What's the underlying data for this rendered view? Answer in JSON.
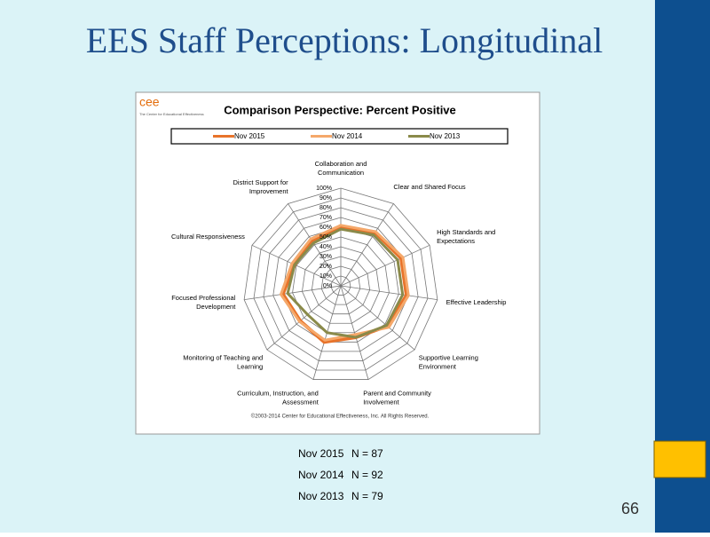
{
  "title": "EES Staff Perceptions: Longitudinal",
  "logo_text": "cee",
  "logo_caption": "The Center for Educational Effectiveness",
  "chart_data": {
    "type": "radar",
    "title": "Comparison Perspective: Percent Positive",
    "categories": [
      "Collaboration and\nCommunication",
      "Clear and Shared Focus",
      "High Standards and\nExpectations",
      "Effective Leadership",
      "Supportive Learning\nEnvironment",
      "Parent and Community\nInvolvement",
      "Curriculum, Instruction, and\nAssessment",
      "Monitoring of Teaching and\nLearning",
      "Focused Professional\nDevelopment",
      "Cultural Responsiveness",
      "District Support for\nImprovement"
    ],
    "series": [
      {
        "name": "Nov 2015",
        "color": "#e8732a",
        "values": [
          60,
          65,
          68,
          68,
          63,
          55,
          60,
          55,
          60,
          52,
          55
        ]
      },
      {
        "name": "Nov 2014",
        "color": "#f5a86a",
        "values": [
          62,
          66,
          70,
          70,
          65,
          52,
          58,
          56,
          62,
          55,
          57
        ]
      },
      {
        "name": "Nov 2013",
        "color": "#8a8a4a",
        "values": [
          58,
          62,
          64,
          64,
          62,
          55,
          50,
          45,
          55,
          52,
          52
        ]
      }
    ],
    "ylim": [
      0,
      100
    ],
    "yticks": [
      {
        "value": 0,
        "label": "0%"
      },
      {
        "value": 10,
        "label": "10%"
      },
      {
        "value": 20,
        "label": "20%"
      },
      {
        "value": 30,
        "label": "30%"
      },
      {
        "value": 40,
        "label": "40%"
      },
      {
        "value": 50,
        "label": "50%"
      },
      {
        "value": 60,
        "label": "60%"
      },
      {
        "value": 70,
        "label": "70%"
      },
      {
        "value": 80,
        "label": "80%"
      },
      {
        "value": 90,
        "label": "90%"
      },
      {
        "value": 100,
        "label": "100%"
      }
    ],
    "grid": true,
    "legend": "top",
    "footnote": "©2003-2014 Center for Educational Effectiveness, Inc. All Rights Reserved."
  },
  "sample_sizes": [
    {
      "label": "Nov 2015",
      "n": "N =  87"
    },
    {
      "label": "Nov 2014",
      "n": "N =  92"
    },
    {
      "label": "Nov 2013",
      "n": "N =  79"
    }
  ],
  "page_number": "66"
}
